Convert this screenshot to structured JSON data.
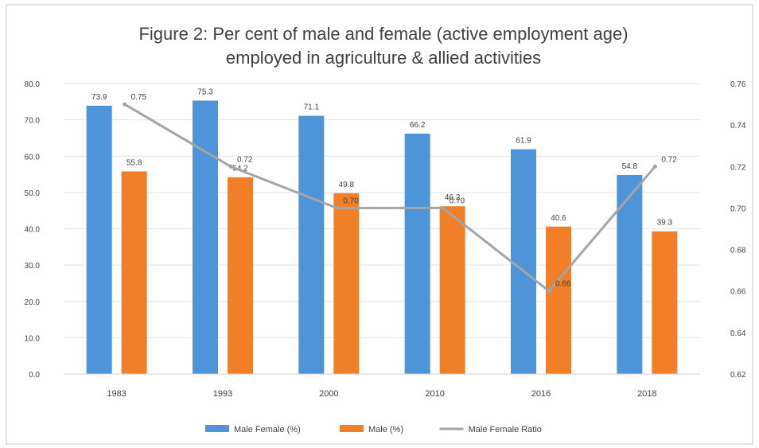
{
  "chart_data": {
    "type": "bar",
    "title_lines": [
      "Figure 2: Per cent of male and female (active employment age)",
      "employed in agriculture & allied activities"
    ],
    "categories": [
      "1983",
      "1993",
      "2000",
      "2010",
      "2016",
      "2018"
    ],
    "series": [
      {
        "name": "Male Female (%)",
        "kind": "bar",
        "axis": "left",
        "color": "#4e94d8",
        "values": [
          73.9,
          75.3,
          71.1,
          66.2,
          61.9,
          54.8
        ],
        "labels": [
          "73.9",
          "75.3",
          "71.1",
          "66.2",
          "61.9",
          "54.8"
        ]
      },
      {
        "name": "Male (%)",
        "kind": "bar",
        "axis": "left",
        "color": "#f07f28",
        "values": [
          55.8,
          54.2,
          49.8,
          46.2,
          40.6,
          39.3
        ],
        "labels": [
          "55.8",
          "54.2",
          "49.8",
          "46.2",
          "40.6",
          "39.3"
        ]
      },
      {
        "name": "Male Female Ratio",
        "kind": "line",
        "axis": "right",
        "color": "#a5a5a5",
        "values": [
          0.75,
          0.72,
          0.7,
          0.7,
          0.66,
          0.72
        ],
        "labels": [
          "0.75",
          "0.72",
          "0.70",
          "0.70",
          "0.66",
          "0.72"
        ]
      }
    ],
    "y_left": {
      "min": 0,
      "max": 80,
      "ticks": [
        "0.0",
        "10.0",
        "20.0",
        "30.0",
        "40.0",
        "50.0",
        "60.0",
        "70.0",
        "80.0"
      ]
    },
    "y_right": {
      "min": 0.62,
      "max": 0.76,
      "ticks": [
        "0.62",
        "0.64",
        "0.66",
        "0.68",
        "0.70",
        "0.72",
        "0.74",
        "0.76"
      ]
    },
    "grid": true,
    "legend_position": "bottom"
  }
}
